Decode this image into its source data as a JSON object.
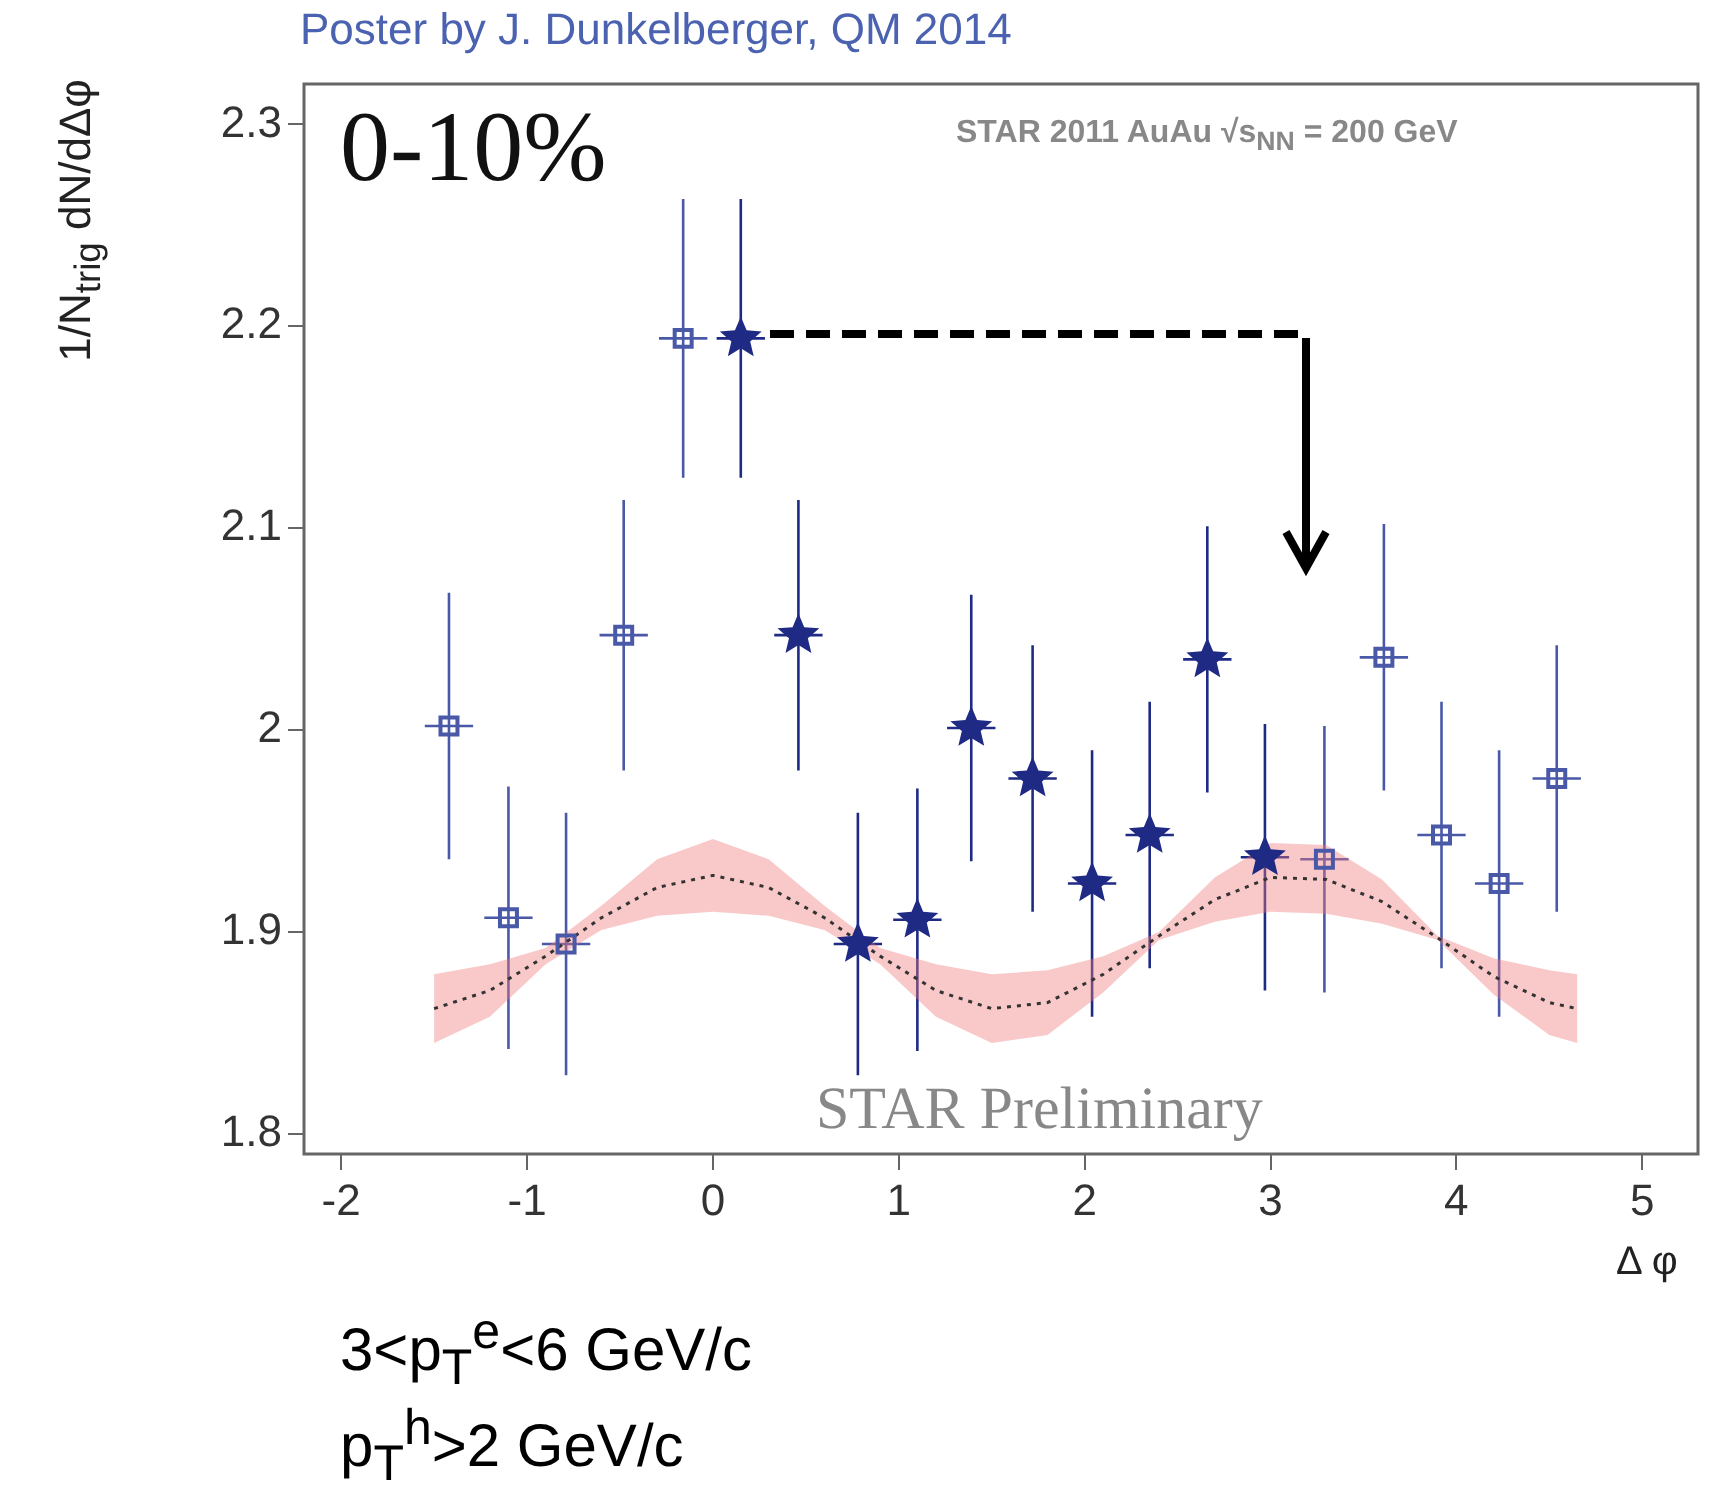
{
  "chart_data": {
    "type": "scatter",
    "title": "Poster by J. Dunkelberger, QM 2014",
    "xlabel": "Δ φ",
    "ylabel": "1/N$_{trig}$ dN/dΔφ",
    "xlim": [
      -2.2,
      5.3
    ],
    "xticks": [
      -2,
      -1,
      0,
      1,
      2,
      3,
      4,
      5
    ],
    "ylim": [
      1.79,
      2.32
    ],
    "yticks": [
      1.8,
      1.9,
      2,
      2.1,
      2.2,
      2.3
    ],
    "grid": false,
    "legend": false,
    "series": [
      {
        "marker": "square",
        "color": "#4a58a8",
        "x": [
          -1.42,
          -1.1,
          -0.79,
          -0.48,
          -0.16,
          3.29,
          3.61,
          3.92,
          4.23,
          4.54
        ],
        "values": [
          2.002,
          1.907,
          1.894,
          2.047,
          2.194,
          1.936,
          2.036,
          1.948,
          1.924,
          1.976
        ],
        "errors": [
          0.066,
          0.065,
          0.065,
          0.067,
          0.069,
          0.066,
          0.066,
          0.066,
          0.066,
          0.066
        ],
        "xerrors": [
          0.13,
          0.13,
          0.13,
          0.13,
          0.13,
          0.13,
          0.13,
          0.13,
          0.13,
          0.13
        ]
      },
      {
        "marker": "star",
        "color": "#1f2a85",
        "x": [
          0.15,
          0.46,
          0.78,
          1.1,
          1.39,
          1.72,
          2.04,
          2.35,
          2.66,
          2.97
        ],
        "values": [
          2.194,
          2.047,
          1.894,
          1.906,
          2.001,
          1.976,
          1.924,
          1.948,
          2.035,
          1.937
        ],
        "errors": [
          0.069,
          0.067,
          0.065,
          0.065,
          0.066,
          0.066,
          0.066,
          0.066,
          0.066,
          0.066
        ],
        "xerrors": [
          0.13,
          0.13,
          0.13,
          0.13,
          0.13,
          0.13,
          0.13,
          0.13,
          0.13,
          0.13
        ]
      },
      {
        "type": "line",
        "marker": "none",
        "line_style": "dotted",
        "color": "#333333",
        "x": [
          -1.5,
          -1.2,
          -0.9,
          -0.6,
          -0.3,
          0,
          0.3,
          0.6,
          0.9,
          1.2,
          1.5,
          1.8,
          2.1,
          2.4,
          2.7,
          3.0,
          3.3,
          3.6,
          3.9,
          4.2,
          4.5,
          4.65
        ],
        "values": [
          1.862,
          1.871,
          1.888,
          1.907,
          1.922,
          1.928,
          1.922,
          1.907,
          1.888,
          1.871,
          1.862,
          1.865,
          1.879,
          1.898,
          1.916,
          1.927,
          1.926,
          1.915,
          1.897,
          1.878,
          1.865,
          1.862
        ],
        "lower": [
          1.845,
          1.858,
          1.884,
          1.901,
          1.908,
          1.91,
          1.908,
          1.901,
          1.884,
          1.858,
          1.845,
          1.849,
          1.87,
          1.896,
          1.905,
          1.91,
          1.909,
          1.904,
          1.896,
          1.869,
          1.849,
          1.845
        ],
        "upper": [
          1.879,
          1.884,
          1.892,
          1.913,
          1.936,
          1.946,
          1.936,
          1.913,
          1.892,
          1.884,
          1.879,
          1.881,
          1.888,
          1.9,
          1.927,
          1.944,
          1.943,
          1.926,
          1.898,
          1.887,
          1.881,
          1.879
        ]
      }
    ],
    "annotations": [
      "0-10%",
      "STAR 2011 AuAu √s$_{NN}$ = 200 GeV",
      "STAR Preliminary",
      "3<p$_{T}$$^{e}$<6 GeV/c",
      "p$_{T}$$^{h}$>2 GeV/c"
    ]
  }
}
